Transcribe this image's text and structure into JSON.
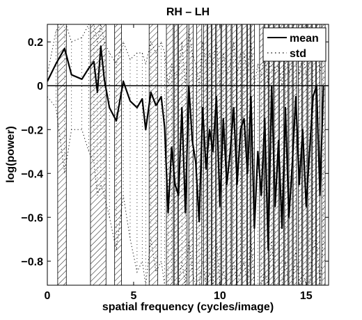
{
  "chart_data": {
    "type": "line",
    "title": "RH – LH",
    "xlabel": "spatial frequency (cycles/image)",
    "ylabel": "log(power)",
    "xlim": [
      0,
      16.3
    ],
    "ylim": [
      -0.91,
      0.28
    ],
    "xticks": [
      0,
      5,
      10,
      15
    ],
    "xtick_labels": [
      "0",
      "5",
      "10",
      "15"
    ],
    "yticks": [
      0.2,
      0,
      -0.2,
      -0.4,
      -0.6,
      -0.8
    ],
    "ytick_labels": [
      "0.2",
      "0",
      "−0.2",
      "−0.4",
      "−0.6",
      "−0.8"
    ],
    "grid": false,
    "legend_position": "top-right",
    "legend": [
      "mean",
      "std"
    ],
    "reference_line_y": 0,
    "series": [
      {
        "name": "mean",
        "style": "solid",
        "x": [
          0,
          0.5,
          1,
          1.4,
          2,
          2.4,
          2.7,
          2.9,
          3.1,
          3.3,
          3.6,
          4.0,
          4.4,
          4.8,
          5.2,
          5.5,
          5.7,
          6.0,
          6.3,
          6.6,
          6.8,
          7.0,
          7.2,
          7.4,
          7.6,
          7.8,
          8.0,
          8.2,
          8.4,
          8.6,
          8.8,
          9.0,
          9.2,
          9.4,
          9.6,
          9.8,
          10.0,
          10.2,
          10.4,
          10.6,
          10.8,
          11.0,
          11.2,
          11.4,
          11.6,
          11.8,
          12.0,
          12.2,
          12.4,
          12.6,
          12.8,
          13.0,
          13.2,
          13.4,
          13.6,
          13.8,
          14.0,
          14.2,
          14.4,
          14.6,
          14.8,
          15.0,
          15.2,
          15.4,
          15.6,
          15.8,
          16.0
        ],
        "values": [
          0.02,
          0.1,
          0.17,
          0.05,
          0.03,
          0.08,
          0.11,
          -0.03,
          0.18,
          0.03,
          -0.1,
          -0.16,
          0.02,
          -0.07,
          -0.1,
          -0.06,
          -0.2,
          -0.03,
          -0.09,
          -0.05,
          -0.19,
          -0.58,
          -0.28,
          -0.45,
          -0.5,
          -0.1,
          -0.58,
          0.0,
          -0.25,
          -0.35,
          -0.62,
          -0.1,
          -0.38,
          -0.2,
          -0.3,
          -0.05,
          -0.55,
          -0.15,
          -0.45,
          -0.3,
          -0.1,
          -0.45,
          -0.2,
          -0.15,
          -0.4,
          -0.05,
          -0.65,
          -0.3,
          -0.5,
          -0.15,
          -0.75,
          0.0,
          -0.55,
          -0.25,
          -0.65,
          -0.1,
          -0.6,
          -0.35,
          -0.05,
          -0.45,
          -0.2,
          -0.55,
          -0.3,
          -0.05,
          0.0,
          -0.5,
          0.0
        ]
      },
      {
        "name": "std",
        "style": "dotted",
        "x": [
          0,
          0.5,
          1,
          1.4,
          2,
          2.4,
          2.7,
          2.9,
          3.1,
          3.3,
          3.6,
          4.0,
          4.4,
          4.8,
          5.2,
          5.5,
          5.7,
          6.0,
          6.3,
          6.6,
          6.8,
          7.0,
          7.2,
          7.4,
          7.6,
          7.8,
          8.0,
          8.2,
          8.4,
          8.6,
          8.8,
          9.0,
          9.2,
          9.4,
          9.6,
          9.8,
          10.0,
          10.2,
          10.4,
          10.6,
          10.8,
          11.0,
          11.2,
          11.4,
          11.6,
          11.8,
          12.0,
          12.2,
          12.4,
          12.6,
          12.8,
          13.0,
          13.2,
          13.4,
          13.6,
          13.8,
          14.0,
          14.2,
          14.4,
          14.6,
          14.8,
          15.0,
          15.2,
          15.4,
          15.6,
          15.8,
          16.0
        ],
        "upper": [
          0.05,
          0.25,
          0.3,
          0.2,
          0.22,
          0.28,
          0.28,
          0.2,
          0.28,
          0.2,
          0.15,
          0.1,
          0.2,
          0.12,
          0.15,
          0.15,
          0.1,
          0.2,
          0.15,
          0.2,
          0.15,
          0.0,
          0.1,
          0.05,
          0.05,
          0.2,
          0.0,
          0.25,
          0.15,
          0.1,
          0.0,
          0.2,
          0.1,
          0.15,
          0.1,
          0.2,
          0.0,
          0.15,
          0.05,
          0.1,
          0.2,
          0.05,
          0.15,
          0.15,
          0.05,
          0.2,
          0.0,
          0.1,
          0.05,
          0.15,
          0.0,
          0.25,
          0.05,
          0.1,
          0.0,
          0.2,
          0.05,
          0.1,
          0.2,
          0.05,
          0.15,
          0.05,
          0.1,
          0.2,
          0.2,
          0.05,
          0.2
        ],
        "lower": [
          -0.05,
          -0.1,
          -0.4,
          -0.2,
          -0.2,
          -0.3,
          -0.35,
          -0.5,
          -0.45,
          -0.5,
          -0.6,
          -0.75,
          -0.5,
          -0.7,
          -0.85,
          -0.8,
          -0.91,
          -0.7,
          -0.85,
          -0.8,
          -0.91,
          -0.91,
          -0.91,
          -0.91,
          -0.91,
          -0.8,
          -0.91,
          -0.7,
          -0.85,
          -0.91,
          -0.91,
          -0.8,
          -0.91,
          -0.85,
          -0.91,
          -0.7,
          -0.91,
          -0.85,
          -0.91,
          -0.91,
          -0.8,
          -0.91,
          -0.85,
          -0.8,
          -0.91,
          -0.7,
          -0.91,
          -0.91,
          -0.91,
          -0.85,
          -0.91,
          -0.7,
          -0.91,
          -0.91,
          -0.91,
          -0.8,
          -0.91,
          -0.91,
          -0.75,
          -0.91,
          -0.85,
          -0.91,
          -0.91,
          -0.75,
          -0.7,
          -0.91,
          -0.7
        ]
      }
    ],
    "significance_bands": [
      [
        0.6,
        1.1
      ],
      [
        2.5,
        3.4
      ],
      [
        3.9,
        4.3
      ],
      [
        5.9,
        6.4
      ],
      [
        6.9,
        7.3
      ],
      [
        7.35,
        7.55
      ],
      [
        7.6,
        8.1
      ],
      [
        8.2,
        8.45
      ],
      [
        8.65,
        8.95
      ],
      [
        9.05,
        9.25
      ],
      [
        9.3,
        9.5
      ],
      [
        9.55,
        9.75
      ],
      [
        9.8,
        10.05
      ],
      [
        10.1,
        10.35
      ],
      [
        10.4,
        10.65
      ],
      [
        10.7,
        10.95
      ],
      [
        11.0,
        11.25
      ],
      [
        11.3,
        11.55
      ],
      [
        11.6,
        11.75
      ],
      [
        11.8,
        12.0
      ],
      [
        12.3,
        12.55
      ],
      [
        12.6,
        12.8
      ],
      [
        12.85,
        13.1
      ],
      [
        13.15,
        13.4
      ],
      [
        13.45,
        13.7
      ],
      [
        13.75,
        13.95
      ],
      [
        14.0,
        14.2
      ],
      [
        14.25,
        14.45
      ],
      [
        14.55,
        14.75
      ],
      [
        14.8,
        15.05
      ],
      [
        15.1,
        15.3
      ],
      [
        15.35,
        15.55
      ],
      [
        15.6,
        15.8
      ],
      [
        15.9,
        16.1
      ]
    ]
  }
}
